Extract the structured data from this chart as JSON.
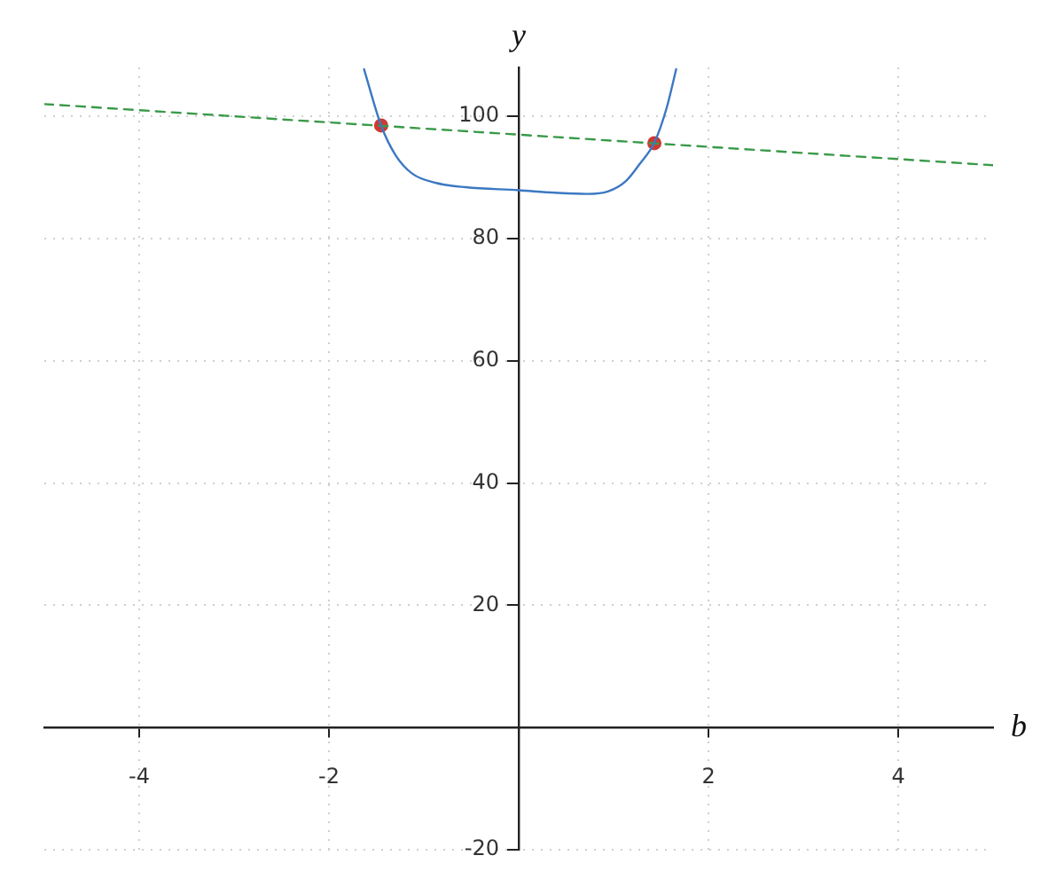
{
  "chart_data": {
    "type": "line",
    "xlabel": "b",
    "ylabel": "y",
    "xlim": [
      -5,
      5
    ],
    "ylim": [
      -20,
      108
    ],
    "xticks": [
      -4,
      -2,
      2,
      4
    ],
    "yticks": [
      -20,
      20,
      40,
      60,
      80,
      100
    ],
    "grid": true,
    "series": [
      {
        "type": "line",
        "color": "#3b78c2",
        "x": [
          -1.63,
          -1.45,
          -1.3,
          -1.12,
          -0.87,
          -0.56,
          0,
          0.38,
          0.72,
          0.94,
          1.13,
          1.28,
          1.43,
          1.56,
          1.66
        ],
        "values": [
          107.7,
          98.5,
          93.7,
          90.6,
          89.1,
          88.4,
          87.9,
          87.5,
          87.3,
          87.7,
          89.4,
          92.3,
          95.7,
          101.4,
          107.7
        ]
      },
      {
        "type": "line",
        "color": "#3a9a4a",
        "line_style": "dashed",
        "x": [
          -5,
          5
        ],
        "values": [
          102,
          92
        ]
      },
      {
        "type": "scatter",
        "color": "#cc3b33",
        "marker": "circle",
        "x": [
          -1.45,
          1.43
        ],
        "values": [
          98.5,
          95.6
        ]
      }
    ]
  }
}
